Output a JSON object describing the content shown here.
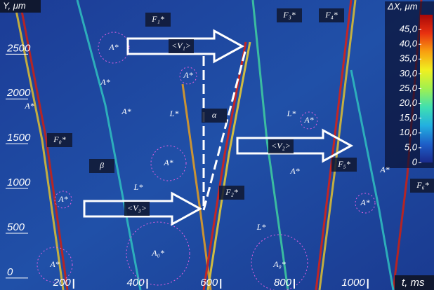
{
  "chart_data": {
    "type": "image-map",
    "ylabel": "Y, μm",
    "xlabel": "t, ms",
    "xlim": [
      0,
      1180
    ],
    "xticks": [
      200,
      400,
      600,
      800,
      1000
    ],
    "ylim": [
      -150,
      3090
    ],
    "yticks": [
      0,
      500,
      1000,
      1500,
      2000,
      2500
    ],
    "colorbar_label": "ΔX, μm",
    "clim": [
      0,
      50
    ],
    "cticks": [
      {
        "value": 45,
        "label": "45,0"
      },
      {
        "value": 40,
        "label": "40,0"
      },
      {
        "value": 35,
        "label": "35,0"
      },
      {
        "value": 30,
        "label": "30,0"
      },
      {
        "value": 25,
        "label": "25,0"
      },
      {
        "value": 20,
        "label": "20,0"
      },
      {
        "value": 15,
        "label": "15,0"
      },
      {
        "value": 10,
        "label": "10,0"
      },
      {
        "value": 5,
        "label": "5,0"
      },
      0
    ],
    "colormap": [
      "#1a2a8c",
      "#1e5fc8",
      "#22b0e0",
      "#40e0b0",
      "#a0f050",
      "#f0f020",
      "#f8a010",
      "#e83010",
      "#a80808"
    ],
    "annotations": [
      "F₁*",
      "F₃*",
      "F₄*",
      "F₀*",
      "F₂*",
      "F₅*",
      "F₆*",
      "<V₁>",
      "<V₂>",
      "<V₃>",
      "α",
      "β",
      "L*",
      "L*",
      "L*",
      "L*",
      "A*",
      "A*",
      "A*",
      "A*",
      "A*",
      "A*",
      "A*",
      "A*",
      "A*",
      "A*",
      "A*",
      "A*",
      "A₀*",
      "A₀*"
    ]
  }
}
